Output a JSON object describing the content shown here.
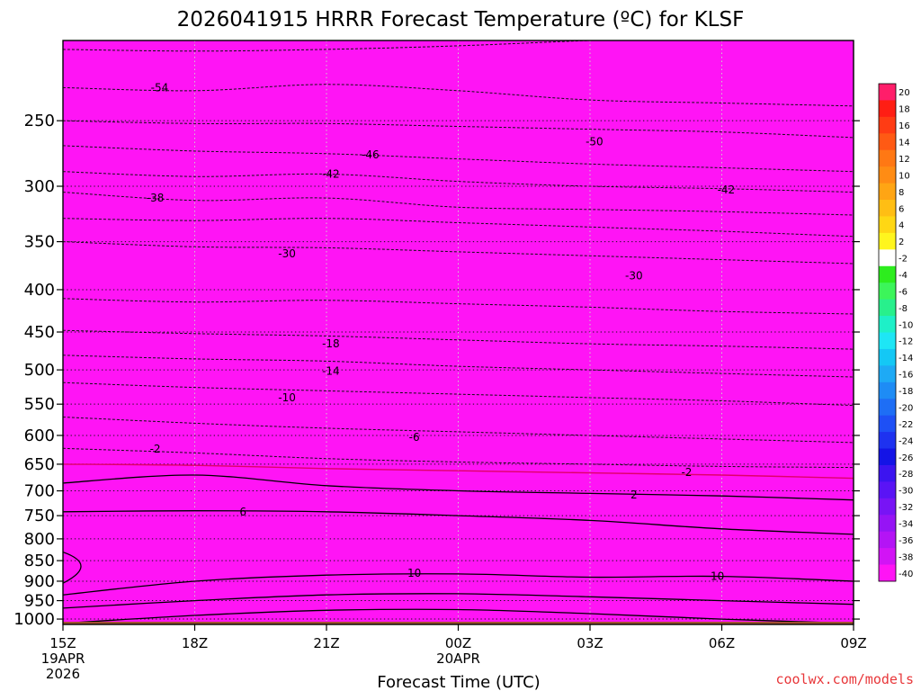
{
  "chart_data": {
    "type": "heatmap",
    "title": "2026041915 HRRR Forecast Temperature (ºC) for KLSF",
    "xlabel": "Forecast Time (UTC)",
    "ylabel": "",
    "x_hours": [
      0,
      3,
      6,
      9,
      12,
      15,
      18
    ],
    "x_tick_labels": [
      "15Z",
      "18Z",
      "21Z",
      "00Z",
      "03Z",
      "06Z",
      "09Z"
    ],
    "x_date_labels": [
      {
        "hour": 0,
        "lines": [
          "19APR",
          "2026"
        ]
      },
      {
        "hour": 9,
        "lines": [
          "20APR"
        ]
      }
    ],
    "y_scale": "log-pressure",
    "ylim": [
      1015,
      200
    ],
    "y_ticks": [
      250,
      300,
      350,
      400,
      450,
      500,
      550,
      600,
      650,
      700,
      750,
      800,
      850,
      900,
      950,
      1000
    ],
    "colorbar_levels": [
      20,
      18,
      16,
      14,
      12,
      10,
      8,
      6,
      4,
      2,
      -2,
      -4,
      -6,
      -8,
      -10,
      -12,
      -14,
      -16,
      -18,
      -20,
      -22,
      -24,
      -26,
      -28,
      -30,
      -32,
      -34,
      -36,
      -38,
      -40
    ],
    "colorbar_colors": [
      "#ff1e6a",
      "#ff1e14",
      "#ff3c14",
      "#ff5a14",
      "#ff7814",
      "#ff8c14",
      "#ffa514",
      "#ffbe14",
      "#ffd714",
      "#fff51e",
      "#ffffff",
      "#2ded1e",
      "#3cf55a",
      "#28f08c",
      "#1ef0c8",
      "#1ee6f5",
      "#14c8f5",
      "#1eaaf5",
      "#1e8cf5",
      "#1e6ef5",
      "#1e50f5",
      "#1e32f0",
      "#1414e6",
      "#3c14f0",
      "#5a14f5",
      "#7814f5",
      "#9614f5",
      "#b414f5",
      "#d214f5",
      "#ff14f5"
    ],
    "contour_labels": [
      {
        "text": "-54",
        "hour": 2.2,
        "p": 228
      },
      {
        "text": "-50",
        "hour": 12.1,
        "p": 265
      },
      {
        "text": "-46",
        "hour": 7.0,
        "p": 275
      },
      {
        "text": "-42",
        "hour": 6.1,
        "p": 290
      },
      {
        "text": "-42",
        "hour": 15.1,
        "p": 303
      },
      {
        "text": "-38",
        "hour": 2.1,
        "p": 310
      },
      {
        "text": "-30",
        "hour": 5.1,
        "p": 362
      },
      {
        "text": "-30",
        "hour": 13.0,
        "p": 385
      },
      {
        "text": "-18",
        "hour": 6.1,
        "p": 465
      },
      {
        "text": "-14",
        "hour": 6.1,
        "p": 502
      },
      {
        "text": "-10",
        "hour": 5.1,
        "p": 540
      },
      {
        "text": "-6",
        "hour": 8.0,
        "p": 603
      },
      {
        "text": "-2",
        "hour": 2.1,
        "p": 623
      },
      {
        "text": "-2",
        "hour": 14.2,
        "p": 665
      },
      {
        "text": "2",
        "hour": 13.0,
        "p": 708
      },
      {
        "text": "6",
        "hour": 4.1,
        "p": 742
      },
      {
        "text": "10",
        "hour": 8.0,
        "p": 880
      },
      {
        "text": "10",
        "hour": 14.9,
        "p": 888
      }
    ]
  },
  "credit": "coolwx.com/models",
  "colors": {
    "background": "#ffffff",
    "ground": "#a0522d",
    "frame": "#000000",
    "credit": "#e8373a",
    "freezing_line": "#e0006a"
  }
}
